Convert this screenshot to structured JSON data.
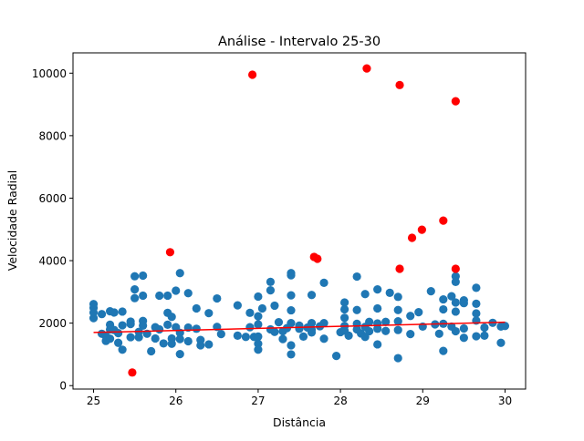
{
  "chart_data": {
    "type": "scatter",
    "title": "Análise - Intervalo 25-30",
    "xlabel": "Distância",
    "ylabel": "Velocidade Radial",
    "xlim": [
      24.75,
      30.25
    ],
    "ylim": [
      -110,
      10650
    ],
    "xticks": [
      25,
      26,
      27,
      28,
      29,
      30
    ],
    "xtick_labels": [
      "25",
      "26",
      "27",
      "28",
      "29",
      "30"
    ],
    "yticks": [
      0,
      2000,
      4000,
      6000,
      8000,
      10000
    ],
    "ytick_labels": [
      "0",
      "2000",
      "4000",
      "6000",
      "8000",
      "10000"
    ],
    "grid": false,
    "colors": {
      "inliers": "#1f77b4",
      "outliers": "#ff0000",
      "trend": "#ff0000"
    },
    "series": [
      {
        "role": "inliers",
        "points": [
          [
            25.0,
            2610
          ],
          [
            25.0,
            2490
          ],
          [
            25.0,
            2160
          ],
          [
            25.0,
            2340
          ],
          [
            25.1,
            2290
          ],
          [
            25.1,
            1660
          ],
          [
            25.15,
            1580
          ],
          [
            25.15,
            1430
          ],
          [
            25.2,
            2380
          ],
          [
            25.2,
            1950
          ],
          [
            25.2,
            1800
          ],
          [
            25.2,
            1500
          ],
          [
            25.25,
            2340
          ],
          [
            25.25,
            1780
          ],
          [
            25.3,
            1680
          ],
          [
            25.3,
            1370
          ],
          [
            25.35,
            2370
          ],
          [
            25.35,
            1930
          ],
          [
            25.35,
            1150
          ],
          [
            25.45,
            2050
          ],
          [
            25.45,
            1970
          ],
          [
            25.45,
            1550
          ],
          [
            25.5,
            3500
          ],
          [
            25.5,
            3080
          ],
          [
            25.5,
            2800
          ],
          [
            25.55,
            1720
          ],
          [
            25.55,
            1550
          ],
          [
            25.6,
            3520
          ],
          [
            25.6,
            2880
          ],
          [
            25.6,
            2070
          ],
          [
            25.6,
            1920
          ],
          [
            25.65,
            1660
          ],
          [
            25.7,
            1100
          ],
          [
            25.75,
            1870
          ],
          [
            25.75,
            1510
          ],
          [
            25.8,
            2880
          ],
          [
            25.8,
            1800
          ],
          [
            25.85,
            1350
          ],
          [
            25.9,
            2880
          ],
          [
            25.9,
            2330
          ],
          [
            25.9,
            1950
          ],
          [
            25.95,
            2200
          ],
          [
            25.95,
            1510
          ],
          [
            25.95,
            1340
          ],
          [
            26.0,
            3040
          ],
          [
            26.0,
            1870
          ],
          [
            26.05,
            3600
          ],
          [
            26.05,
            1690
          ],
          [
            26.05,
            1490
          ],
          [
            26.05,
            1010
          ],
          [
            26.15,
            2960
          ],
          [
            26.15,
            1860
          ],
          [
            26.15,
            1420
          ],
          [
            26.25,
            2470
          ],
          [
            26.25,
            1820
          ],
          [
            26.3,
            1460
          ],
          [
            26.3,
            1290
          ],
          [
            26.4,
            2320
          ],
          [
            26.4,
            1320
          ],
          [
            26.5,
            2790
          ],
          [
            26.5,
            1880
          ],
          [
            26.55,
            1650
          ],
          [
            26.75,
            2570
          ],
          [
            26.75,
            1600
          ],
          [
            26.85,
            1560
          ],
          [
            26.9,
            2330
          ],
          [
            26.9,
            1870
          ],
          [
            26.95,
            1560
          ],
          [
            27.0,
            2850
          ],
          [
            27.0,
            2220
          ],
          [
            27.0,
            1960
          ],
          [
            27.0,
            1570
          ],
          [
            27.0,
            1340
          ],
          [
            27.0,
            1150
          ],
          [
            27.05,
            2470
          ],
          [
            27.15,
            3320
          ],
          [
            27.15,
            3050
          ],
          [
            27.15,
            1800
          ],
          [
            27.2,
            2560
          ],
          [
            27.2,
            1720
          ],
          [
            27.25,
            2030
          ],
          [
            27.3,
            1740
          ],
          [
            27.3,
            1490
          ],
          [
            27.35,
            1840
          ],
          [
            27.4,
            3600
          ],
          [
            27.4,
            3530
          ],
          [
            27.4,
            2890
          ],
          [
            27.4,
            2410
          ],
          [
            27.4,
            2000
          ],
          [
            27.4,
            1290
          ],
          [
            27.4,
            1000
          ],
          [
            27.5,
            1920
          ],
          [
            27.5,
            1820
          ],
          [
            27.55,
            1570
          ],
          [
            27.6,
            1860
          ],
          [
            27.65,
            2900
          ],
          [
            27.65,
            2000
          ],
          [
            27.65,
            1790
          ],
          [
            27.65,
            1700
          ],
          [
            27.75,
            1900
          ],
          [
            27.8,
            3290
          ],
          [
            27.8,
            2000
          ],
          [
            27.8,
            1500
          ],
          [
            27.95,
            950
          ],
          [
            28.0,
            1710
          ],
          [
            28.05,
            2660
          ],
          [
            28.05,
            2440
          ],
          [
            28.05,
            2170
          ],
          [
            28.05,
            1910
          ],
          [
            28.05,
            1760
          ],
          [
            28.1,
            1600
          ],
          [
            28.2,
            3490
          ],
          [
            28.2,
            2420
          ],
          [
            28.2,
            1980
          ],
          [
            28.2,
            1800
          ],
          [
            28.25,
            1670
          ],
          [
            28.3,
            2930
          ],
          [
            28.3,
            1880
          ],
          [
            28.3,
            1560
          ],
          [
            28.35,
            2040
          ],
          [
            28.35,
            1740
          ],
          [
            28.45,
            3080
          ],
          [
            28.45,
            2470
          ],
          [
            28.45,
            1990
          ],
          [
            28.45,
            1820
          ],
          [
            28.45,
            1320
          ],
          [
            28.55,
            2040
          ],
          [
            28.55,
            1750
          ],
          [
            28.6,
            2970
          ],
          [
            28.7,
            2840
          ],
          [
            28.7,
            2420
          ],
          [
            28.7,
            2060
          ],
          [
            28.7,
            1780
          ],
          [
            28.7,
            880
          ],
          [
            28.85,
            2230
          ],
          [
            28.85,
            1650
          ],
          [
            28.95,
            2350
          ],
          [
            29.0,
            1890
          ],
          [
            29.1,
            3020
          ],
          [
            29.15,
            1960
          ],
          [
            29.2,
            1660
          ],
          [
            29.25,
            2760
          ],
          [
            29.25,
            2440
          ],
          [
            29.25,
            1980
          ],
          [
            29.25,
            1110
          ],
          [
            29.35,
            2860
          ],
          [
            29.35,
            1890
          ],
          [
            29.4,
            3500
          ],
          [
            29.4,
            3320
          ],
          [
            29.4,
            2660
          ],
          [
            29.4,
            2370
          ],
          [
            29.4,
            1740
          ],
          [
            29.5,
            2730
          ],
          [
            29.5,
            2640
          ],
          [
            29.5,
            1830
          ],
          [
            29.5,
            1530
          ],
          [
            29.65,
            3130
          ],
          [
            29.65,
            2620
          ],
          [
            29.65,
            2310
          ],
          [
            29.65,
            2080
          ],
          [
            29.65,
            1580
          ],
          [
            29.75,
            1860
          ],
          [
            29.75,
            1600
          ],
          [
            29.85,
            2010
          ],
          [
            29.95,
            1890
          ],
          [
            29.95,
            1370
          ],
          [
            30.0,
            1910
          ]
        ]
      },
      {
        "role": "outliers",
        "points": [
          [
            25.47,
            420
          ],
          [
            25.93,
            4270
          ],
          [
            26.93,
            9950
          ],
          [
            27.68,
            4120
          ],
          [
            27.72,
            4060
          ],
          [
            28.32,
            10150
          ],
          [
            28.72,
            9620
          ],
          [
            28.72,
            3740
          ],
          [
            28.87,
            4730
          ],
          [
            28.99,
            4990
          ],
          [
            29.25,
            5280
          ],
          [
            29.4,
            9100
          ],
          [
            29.4,
            3740
          ]
        ]
      }
    ],
    "trendline": {
      "x": [
        25.0,
        30.0
      ],
      "y": [
        1700,
        2030
      ]
    }
  }
}
